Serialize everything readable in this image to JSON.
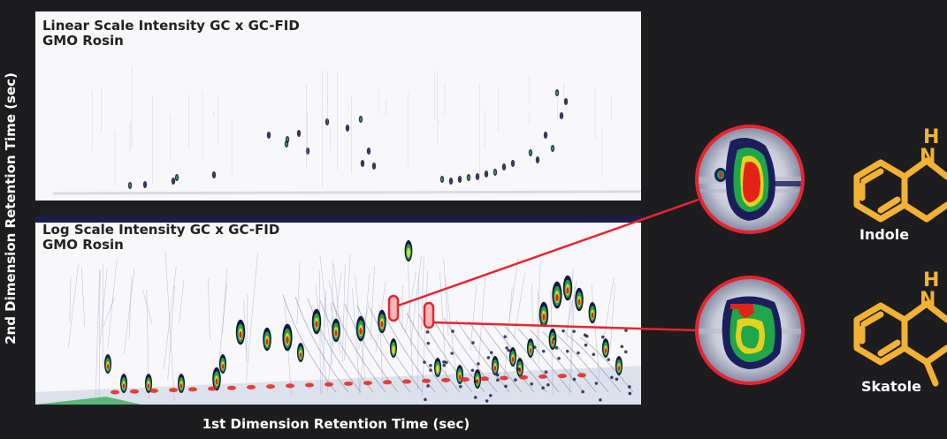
{
  "chart_data": [
    {
      "type": "heatmap",
      "title": "Linear Scale Intensity GC x GC-FID",
      "subtitle": "GMO Rosin",
      "xlabel": "1st Dimension Retention Time (sec)",
      "ylabel": "2nd Dimension Retention Time (sec)",
      "scale": "linear"
    },
    {
      "type": "heatmap",
      "title": "Log Scale Intensity GC x GC-FID",
      "subtitle": "GMO Rosin",
      "xlabel": "1st Dimension Retention Time (sec)",
      "ylabel": "2nd Dimension Retention Time (sec)",
      "scale": "log"
    }
  ],
  "axes": {
    "xlabel": "1st Dimension Retention Time (sec)",
    "ylabel": "2nd Dimension Retention Time (sec)"
  },
  "panels": {
    "linear_title": "Linear Scale Intensity GC x GC-FID\nGMO Rosin",
    "log_title": "Log Scale Intensity GC x GC-FID\nGMO Rosin"
  },
  "compounds": [
    {
      "name": "Indole",
      "highlight_color": "#e8242e",
      "structure_color": "#f2b233"
    },
    {
      "name": "Skatole",
      "highlight_color": "#e8242e",
      "structure_color": "#f2b233"
    }
  ],
  "atom_labels": {
    "indole_h": "H",
    "indole_n": "N",
    "skatole_h": "H",
    "skatole_n": "N"
  },
  "colors": {
    "background": "#1d1d1f",
    "panel": "#f8f8fb",
    "peak_dark": "#15163f",
    "peak_green": "#1fa64a",
    "peak_yellow": "#e5d21e",
    "peak_red": "#e32318",
    "callout": "#e8242e",
    "structure": "#f2b233"
  }
}
